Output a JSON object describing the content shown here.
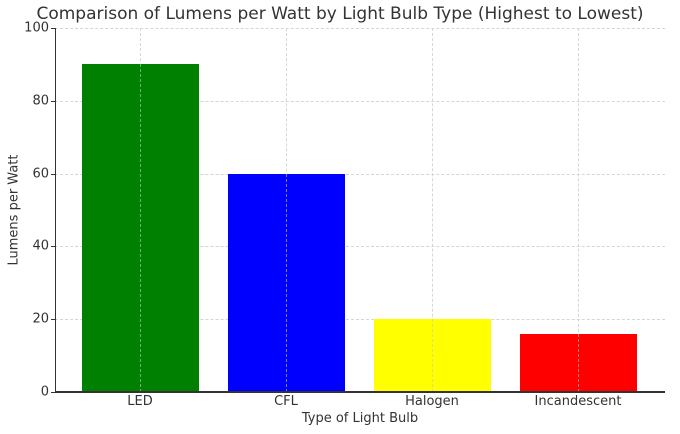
{
  "chart_data": {
    "type": "bar",
    "title": "Comparison of Lumens per Watt by Light Bulb Type (Highest to Lowest)",
    "xlabel": "Type of Light Bulb",
    "ylabel": "Lumens per Watt",
    "categories": [
      "LED",
      "CFL",
      "Halogen",
      "Incandescent"
    ],
    "values": [
      90,
      60,
      20,
      16
    ],
    "colors": [
      "#008000",
      "#0000ff",
      "#ffff00",
      "#ff0000"
    ],
    "ylim": [
      0,
      100
    ],
    "yticks": [
      0,
      20,
      40,
      60,
      80,
      100
    ],
    "grid": true,
    "legend": null
  },
  "labels": {
    "title": "Comparison of Lumens per Watt by Light Bulb Type (Highest to Lowest)",
    "xlabel": "Type of Light Bulb",
    "ylabel": "Lumens per Watt",
    "yticks": [
      "0",
      "20",
      "40",
      "60",
      "80",
      "100"
    ],
    "xticks": [
      "LED",
      "CFL",
      "Halogen",
      "Incandescent"
    ]
  }
}
